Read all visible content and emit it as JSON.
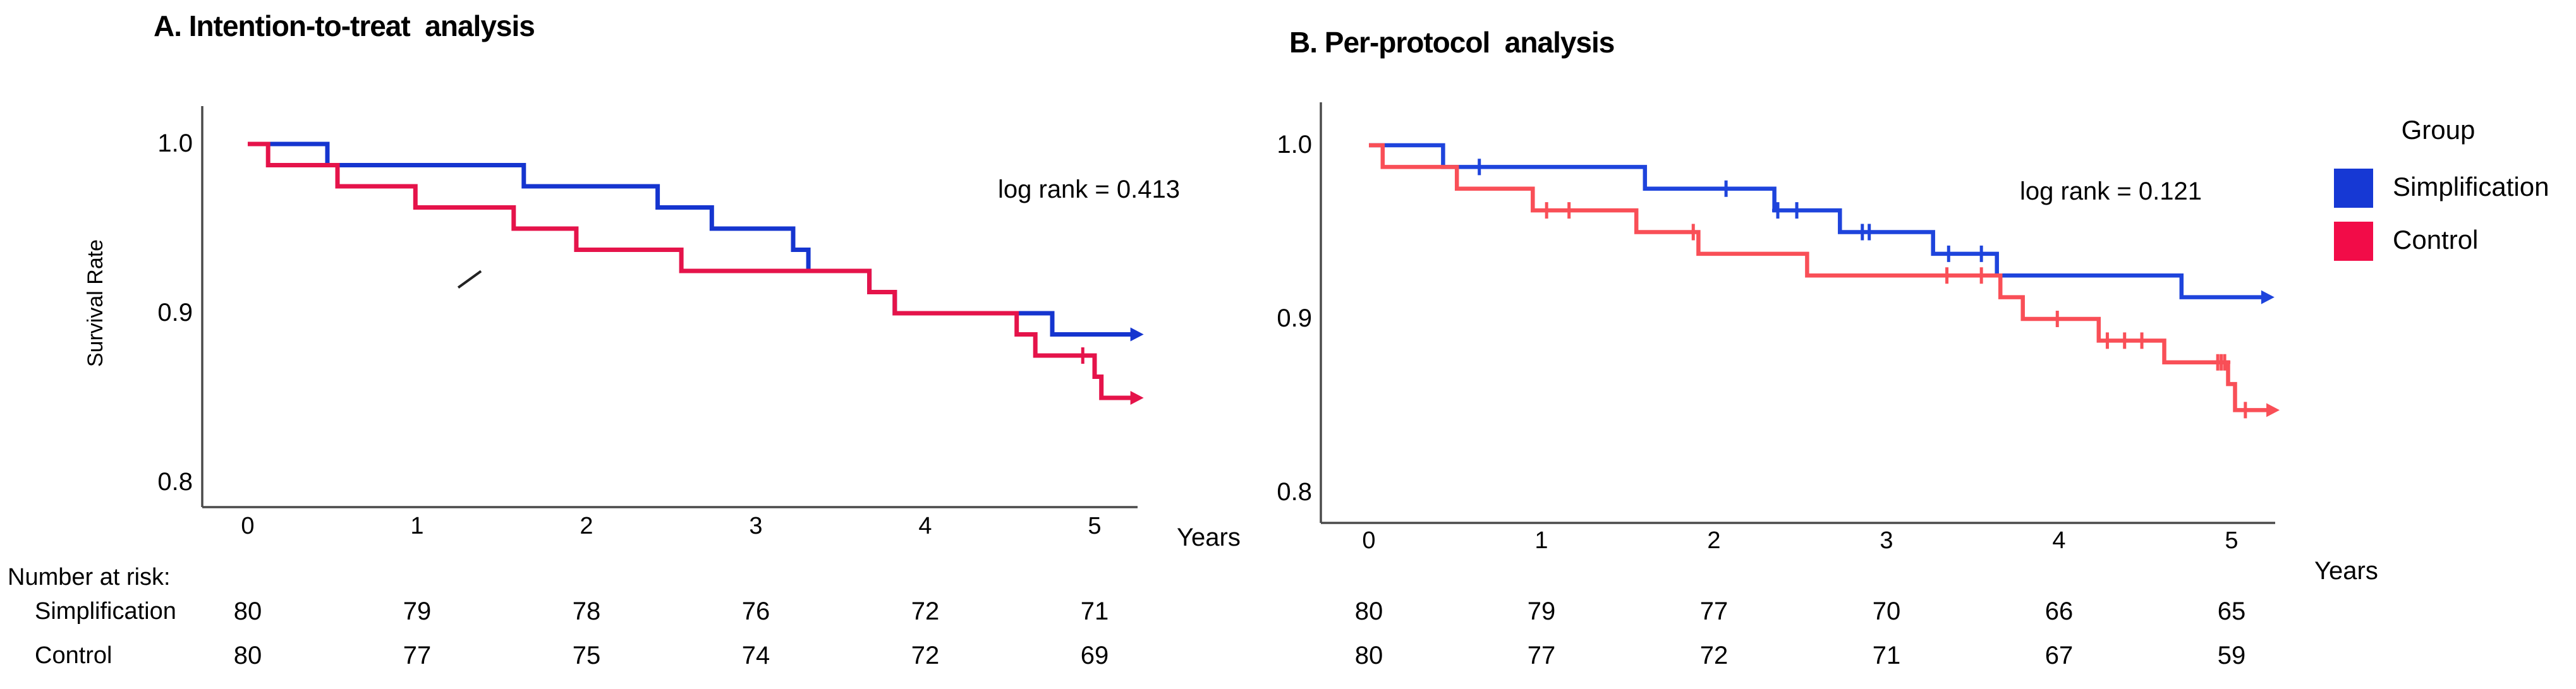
{
  "legend": {
    "title": "Group",
    "items": [
      {
        "label": "Simplification",
        "color": "#1638d4"
      },
      {
        "label": "Control",
        "color": "#f20c48"
      }
    ]
  },
  "chart_data": [
    {
      "type": "line",
      "subtype": "kaplan_meier_step",
      "panel_label": "A",
      "title": "A. Intention-to-treat  analysis",
      "annotation": "log rank = 0.413",
      "xlabel": "Years",
      "ylabel": "Survival Rate",
      "x_ticks": [
        0,
        1,
        2,
        3,
        4,
        5
      ],
      "y_ticks": [
        "1.0",
        "0.9",
        "0.8"
      ],
      "xlim": [
        0,
        5.35
      ],
      "ylim": [
        0.785,
        1.022
      ],
      "grid": false,
      "legend_position": "figure-right",
      "series": [
        {
          "name": "Simplification",
          "color": "#1535cf",
          "steps": [
            [
              0,
              1.0
            ],
            [
              0.47,
              0.9875
            ],
            [
              1.63,
              0.975
            ],
            [
              2.42,
              0.9625
            ],
            [
              2.74,
              0.95
            ],
            [
              3.22,
              0.9375
            ],
            [
              3.31,
              0.925
            ],
            [
              3.67,
              0.9125
            ],
            [
              3.82,
              0.9
            ],
            [
              4.75,
              0.8875
            ]
          ],
          "censor_marks": [],
          "line_end": 5.23
        },
        {
          "name": "Control",
          "color": "#e5134a",
          "steps": [
            [
              0,
              1.0
            ],
            [
              0.12,
              0.9875
            ],
            [
              0.53,
              0.975
            ],
            [
              0.99,
              0.9625
            ],
            [
              1.57,
              0.95
            ],
            [
              1.94,
              0.9375
            ],
            [
              2.56,
              0.925
            ],
            [
              3.67,
              0.9125
            ],
            [
              3.82,
              0.9
            ],
            [
              4.54,
              0.8875
            ],
            [
              4.65,
              0.875
            ],
            [
              5.0,
              0.8625
            ],
            [
              5.04,
              0.85
            ]
          ],
          "censor_marks": [
            [
              4.93,
              0.875
            ]
          ],
          "line_end": 5.23
        }
      ],
      "stray_mark": {
        "x": 1.31,
        "y": 0.92
      },
      "number_at_risk": {
        "heading": "Number at risk:",
        "time_points": [
          0,
          1,
          2,
          3,
          4,
          5
        ],
        "rows": [
          {
            "label": "Simplification",
            "values": [
              "80",
              "79",
              "78",
              "76",
              "72",
              "71"
            ]
          },
          {
            "label": "Control",
            "values": [
              "80",
              "77",
              "75",
              "74",
              "72",
              "69"
            ]
          }
        ]
      }
    },
    {
      "type": "line",
      "subtype": "kaplan_meier_step",
      "panel_label": "B",
      "title": "B. Per-protocol  analysis",
      "annotation": "log rank = 0.121",
      "xlabel": "Years",
      "ylabel": "",
      "x_ticks": [
        0,
        1,
        2,
        3,
        4,
        5
      ],
      "y_ticks": [
        "1.0",
        "0.9",
        "0.8"
      ],
      "xlim": [
        0,
        5.35
      ],
      "ylim": [
        0.782,
        1.024
      ],
      "grid": false,
      "series": [
        {
          "name": "Simplification",
          "color": "#1e44dc",
          "steps": [
            [
              0,
              1.0
            ],
            [
              0.43,
              0.9875
            ],
            [
              1.6,
              0.975
            ],
            [
              2.35,
              0.9625
            ],
            [
              2.73,
              0.95
            ],
            [
              3.27,
              0.9375
            ],
            [
              3.64,
              0.925
            ],
            [
              4.71,
              0.9125
            ]
          ],
          "censor_marks": [
            [
              0.64,
              0.9875
            ],
            [
              2.07,
              0.975
            ],
            [
              2.37,
              0.9625
            ],
            [
              2.48,
              0.9625
            ],
            [
              2.86,
              0.95
            ],
            [
              2.9,
              0.95
            ],
            [
              3.36,
              0.9375
            ],
            [
              3.55,
              0.9375
            ]
          ],
          "line_end": 5.19
        },
        {
          "name": "Control",
          "color": "#f94f57",
          "steps": [
            [
              0,
              1.0
            ],
            [
              0.08,
              0.9875
            ],
            [
              0.51,
              0.975
            ],
            [
              0.95,
              0.9625
            ],
            [
              1.55,
              0.95
            ],
            [
              1.91,
              0.9375
            ],
            [
              2.54,
              0.925
            ],
            [
              3.66,
              0.9125
            ],
            [
              3.79,
              0.9
            ],
            [
              4.23,
              0.8875
            ],
            [
              4.61,
              0.875
            ],
            [
              4.98,
              0.8625
            ],
            [
              5.02,
              0.8475
            ]
          ],
          "censor_marks": [
            [
              1.03,
              0.9625
            ],
            [
              1.16,
              0.9625
            ],
            [
              1.88,
              0.95
            ],
            [
              3.35,
              0.925
            ],
            [
              3.55,
              0.925
            ],
            [
              3.99,
              0.9
            ],
            [
              4.28,
              0.8875
            ],
            [
              4.38,
              0.8875
            ],
            [
              4.48,
              0.8875
            ],
            [
              4.92,
              0.875
            ],
            [
              4.94,
              0.875
            ],
            [
              4.96,
              0.875
            ],
            [
              5.08,
              0.8475
            ]
          ],
          "line_end": 5.22
        }
      ],
      "number_at_risk": {
        "heading": "",
        "time_points": [
          0,
          1,
          2,
          3,
          4,
          5
        ],
        "rows": [
          {
            "label": "",
            "values": [
              "80",
              "79",
              "77",
              "70",
              "66",
              "65"
            ]
          },
          {
            "label": "",
            "values": [
              "80",
              "77",
              "72",
              "71",
              "67",
              "59"
            ]
          }
        ]
      }
    }
  ]
}
